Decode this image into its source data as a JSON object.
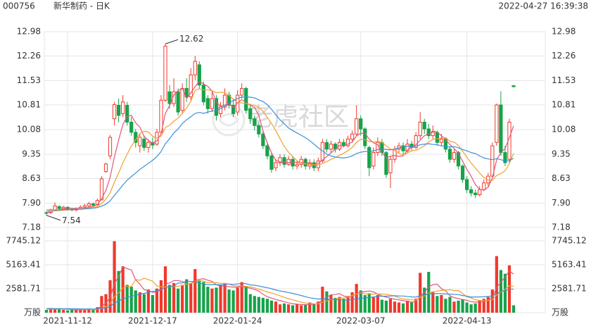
{
  "chart_data": {
    "type": "candlestick",
    "symbol": "000756",
    "title": "新华制药 - 日K",
    "timestamp": "2022-04-27 16:39:38",
    "watermark": "老虎社区",
    "up_color": "#f0392b",
    "down_color": "#16a34a",
    "categories": [
      null,
      null,
      null,
      null,
      null,
      "2021-11-12",
      null,
      null,
      null,
      null,
      null,
      null,
      null,
      null,
      null,
      null,
      null,
      null,
      null,
      null,
      null,
      null,
      null,
      null,
      null,
      "2021-12-17",
      null,
      null,
      null,
      null,
      null,
      null,
      null,
      null,
      null,
      null,
      null,
      null,
      null,
      null,
      null,
      null,
      null,
      null,
      null,
      "2022-01-24",
      null,
      null,
      null,
      null,
      null,
      null,
      null,
      null,
      null,
      null,
      null,
      null,
      null,
      null,
      null,
      null,
      null,
      null,
      null,
      null,
      null,
      null,
      null,
      null,
      null,
      null,
      null,
      null,
      "2022-03-07",
      null,
      null,
      null,
      null,
      null,
      null,
      null,
      null,
      null,
      null,
      null,
      null,
      null,
      null,
      null,
      null,
      null,
      null,
      null,
      null,
      null,
      null,
      null,
      null,
      "2022-04-13",
      null,
      null,
      null,
      null,
      null,
      null,
      null,
      null,
      null,
      null,
      null
    ],
    "open": [
      7.62,
      7.62,
      7.7,
      7.8,
      7.74,
      7.78,
      7.72,
      7.7,
      7.74,
      7.78,
      7.82,
      7.88,
      7.86,
      8.0,
      8.84,
      9.3,
      10.4,
      10.8,
      10.55,
      10.8,
      10.3,
      10.0,
      9.6,
      9.8,
      9.55,
      9.7,
      9.65,
      10.0,
      10.95,
      11.2,
      10.85,
      11.2,
      10.65,
      11.3,
      11.05,
      11.7,
      12.0,
      11.4,
      11.0,
      10.7,
      11.0,
      10.55,
      10.75,
      11.1,
      10.8,
      10.6,
      11.1,
      11.3,
      10.7,
      10.4,
      10.2,
      9.95,
      9.6,
      9.3,
      8.95,
      9.1,
      9.25,
      9.05,
      9.2,
      9.0,
      9.05,
      9.2,
      9.0,
      9.1,
      8.95,
      9.15,
      9.7,
      9.5,
      9.65,
      9.5,
      9.7,
      9.6,
      9.8,
      9.95,
      10.4,
      10.1,
      9.55,
      9.0,
      9.4,
      9.7,
      9.4,
      8.8,
      9.2,
      9.5,
      9.6,
      9.45,
      9.65,
      9.55,
      9.9,
      10.3,
      10.1,
      9.9,
      10.0,
      9.7,
      9.8,
      9.5,
      9.2,
      9.4,
      9.0,
      8.6,
      8.3,
      8.2,
      8.15,
      8.3,
      8.5,
      8.7,
      9.7,
      10.81,
      9.4,
      9.2,
      11.38
    ],
    "high": [
      7.66,
      7.74,
      7.92,
      7.84,
      7.82,
      7.8,
      7.76,
      7.78,
      7.84,
      7.88,
      7.94,
      7.92,
      8.04,
      8.7,
      9.1,
      9.92,
      10.9,
      11.0,
      11.1,
      10.9,
      10.45,
      10.1,
      9.95,
      9.9,
      9.8,
      9.85,
      10.1,
      11.1,
      12.62,
      11.4,
      11.6,
      11.3,
      11.45,
      11.6,
      11.9,
      12.26,
      12.1,
      11.5,
      11.1,
      11.2,
      11.1,
      10.9,
      11.3,
      11.2,
      11.0,
      11.25,
      11.45,
      11.35,
      10.85,
      10.5,
      10.3,
      10.05,
      9.7,
      9.4,
      9.2,
      9.35,
      9.35,
      9.3,
      9.3,
      9.15,
      9.3,
      9.25,
      9.2,
      9.2,
      9.25,
      9.8,
      9.8,
      9.75,
      9.7,
      9.8,
      9.8,
      9.9,
      10.05,
      10.8,
      10.5,
      10.15,
      9.6,
      9.55,
      9.85,
      9.8,
      9.45,
      9.3,
      9.6,
      9.7,
      9.7,
      9.8,
      9.75,
      10.0,
      10.6,
      10.4,
      10.25,
      10.2,
      10.05,
      9.95,
      9.85,
      9.6,
      9.5,
      9.45,
      9.05,
      8.7,
      8.4,
      8.3,
      8.4,
      8.6,
      8.8,
      9.7,
      10.85,
      11.22,
      9.6,
      10.4,
      11.4
    ],
    "low": [
      7.54,
      7.58,
      7.66,
      7.7,
      7.7,
      7.68,
      7.66,
      7.66,
      7.7,
      7.74,
      7.78,
      7.8,
      7.82,
      7.98,
      8.8,
      9.2,
      10.2,
      10.3,
      10.45,
      10.2,
      9.9,
      9.55,
      9.4,
      9.45,
      9.4,
      9.5,
      9.6,
      9.95,
      10.9,
      10.7,
      10.75,
      10.5,
      10.55,
      10.9,
      10.95,
      11.55,
      11.3,
      10.8,
      10.55,
      10.6,
      10.35,
      10.45,
      10.65,
      10.7,
      10.45,
      10.5,
      11.0,
      10.55,
      10.25,
      10.05,
      9.85,
      9.5,
      9.2,
      8.8,
      8.85,
      9.0,
      8.95,
      9.0,
      8.9,
      8.9,
      8.95,
      8.9,
      8.9,
      8.85,
      8.85,
      9.1,
      9.4,
      9.4,
      9.4,
      9.45,
      9.55,
      9.55,
      9.7,
      9.9,
      9.9,
      9.5,
      8.7,
      8.9,
      9.3,
      9.3,
      8.65,
      8.35,
      9.1,
      9.4,
      9.35,
      9.4,
      9.45,
      9.5,
      9.8,
      9.95,
      9.8,
      9.8,
      9.6,
      9.6,
      9.4,
      9.1,
      9.1,
      8.9,
      8.5,
      8.2,
      8.1,
      8.05,
      8.1,
      8.25,
      8.4,
      8.65,
      9.6,
      9.3,
      9.0,
      9.1,
      11.33
    ],
    "close": [
      7.6,
      7.7,
      7.82,
      7.74,
      7.78,
      7.72,
      7.7,
      7.74,
      7.78,
      7.82,
      7.88,
      7.84,
      7.98,
      8.62,
      9.06,
      9.85,
      10.82,
      10.5,
      10.9,
      10.3,
      10.0,
      9.7,
      9.85,
      9.55,
      9.7,
      9.62,
      10.0,
      10.95,
      12.55,
      10.85,
      11.2,
      10.6,
      11.3,
      11.05,
      11.7,
      12.1,
      11.4,
      10.9,
      10.7,
      11.0,
      10.5,
      10.75,
      11.1,
      10.8,
      10.55,
      11.1,
      11.3,
      10.65,
      10.4,
      10.2,
      9.95,
      9.6,
      9.3,
      8.9,
      9.1,
      9.25,
      9.05,
      9.2,
      9.0,
      9.05,
      9.2,
      9.0,
      9.1,
      8.95,
      9.15,
      9.7,
      9.5,
      9.65,
      9.5,
      9.7,
      9.6,
      9.8,
      9.95,
      10.4,
      10.1,
      9.6,
      8.95,
      9.4,
      9.7,
      9.4,
      8.75,
      9.2,
      9.5,
      9.6,
      9.45,
      9.65,
      9.55,
      9.9,
      10.3,
      10.1,
      9.9,
      10.0,
      9.7,
      9.8,
      9.5,
      9.2,
      9.4,
      9.0,
      8.6,
      8.3,
      8.2,
      8.15,
      8.3,
      8.5,
      8.7,
      9.6,
      10.81,
      9.4,
      9.1,
      10.3,
      11.35
    ],
    "ma_series": [
      {
        "color": "#e0577a",
        "values": [
          7.62,
          7.64,
          7.68,
          7.7,
          7.73,
          7.75,
          7.75,
          7.74,
          7.74,
          7.75,
          7.78,
          7.81,
          7.86,
          8.03,
          8.28,
          8.67,
          9.27,
          9.77,
          10.23,
          10.47,
          10.5,
          10.28,
          10.15,
          9.88,
          9.76,
          9.68,
          9.74,
          9.96,
          10.56,
          10.79,
          11.11,
          11.23,
          11.3,
          11.0,
          11.17,
          11.35,
          11.51,
          11.43,
          11.36,
          11.22,
          10.9,
          10.77,
          10.81,
          10.83,
          10.74,
          10.86,
          10.97,
          10.88,
          10.8,
          10.74,
          10.5,
          10.04,
          9.69,
          9.39,
          9.17,
          9.12,
          9.12,
          9.1,
          9.12,
          9.11,
          9.1,
          9.09,
          9.07,
          9.06,
          9.08,
          9.18,
          9.28,
          9.39,
          9.5,
          9.61,
          9.59,
          9.65,
          9.71,
          9.89,
          9.97,
          9.97,
          9.8,
          9.69,
          9.63,
          9.41,
          9.24,
          9.29,
          9.31,
          9.29,
          9.3,
          9.48,
          9.55,
          9.63,
          9.77,
          9.9,
          9.95,
          10.04,
          10.0,
          9.9,
          9.78,
          9.64,
          9.52,
          9.38,
          9.14,
          8.9,
          8.7,
          8.45,
          8.31,
          8.29,
          8.37,
          8.65,
          9.18,
          9.4,
          9.52,
          9.84,
          10.19
        ]
      },
      {
        "color": "#f0a030",
        "values": [
          7.66,
          7.66,
          7.67,
          7.68,
          7.69,
          7.7,
          7.71,
          7.72,
          7.73,
          7.74,
          7.76,
          7.78,
          7.8,
          7.89,
          8.02,
          8.21,
          8.52,
          8.79,
          9.1,
          9.35,
          9.59,
          9.78,
          9.96,
          10.03,
          10.01,
          9.88,
          9.83,
          9.88,
          10.14,
          10.21,
          10.33,
          10.42,
          10.56,
          10.72,
          10.92,
          11.24,
          11.29,
          11.25,
          11.26,
          11.23,
          11.17,
          11.19,
          11.17,
          11.09,
          10.98,
          10.88,
          10.87,
          10.85,
          10.82,
          10.8,
          10.74,
          10.62,
          10.44,
          10.26,
          10.05,
          9.81,
          9.58,
          9.41,
          9.28,
          9.16,
          9.09,
          9.06,
          9.05,
          9.03,
          9.03,
          9.08,
          9.13,
          9.2,
          9.25,
          9.32,
          9.38,
          9.46,
          9.55,
          9.7,
          9.79,
          9.78,
          9.73,
          9.71,
          9.73,
          9.7,
          9.6,
          9.5,
          9.46,
          9.38,
          9.32,
          9.39,
          9.45,
          9.47,
          9.53,
          9.6,
          9.71,
          9.79,
          9.81,
          9.83,
          9.84,
          9.73,
          9.71,
          9.61,
          9.44,
          9.26,
          9.09,
          8.94,
          8.79,
          8.66,
          8.58,
          8.58,
          8.72,
          8.78,
          8.86,
          9.07,
          9.38
        ]
      },
      {
        "color": "#3c8fd8",
        "values": [
          7.7,
          7.7,
          7.7,
          7.7,
          7.71,
          7.71,
          7.71,
          7.72,
          7.72,
          7.73,
          7.74,
          7.75,
          7.77,
          7.81,
          7.87,
          7.97,
          8.13,
          8.28,
          8.44,
          8.58,
          8.69,
          8.79,
          8.9,
          8.99,
          9.08,
          9.17,
          9.28,
          9.43,
          9.66,
          9.81,
          9.98,
          10.1,
          10.26,
          10.37,
          10.46,
          10.56,
          10.59,
          10.56,
          10.6,
          10.63,
          10.65,
          10.7,
          10.77,
          10.87,
          10.94,
          11.0,
          11.04,
          11.05,
          11.04,
          11.02,
          10.96,
          10.91,
          10.82,
          10.68,
          10.52,
          10.37,
          10.25,
          10.13,
          10.05,
          9.98,
          9.91,
          9.84,
          9.75,
          9.65,
          9.54,
          9.45,
          9.35,
          9.3,
          9.27,
          9.25,
          9.24,
          9.26,
          9.3,
          9.37,
          9.41,
          9.43,
          9.43,
          9.45,
          9.49,
          9.51,
          9.49,
          9.48,
          9.5,
          9.54,
          9.56,
          9.59,
          9.59,
          9.59,
          9.63,
          9.65,
          9.66,
          9.64,
          9.63,
          9.6,
          9.58,
          9.56,
          9.58,
          9.54,
          9.49,
          9.45,
          9.4,
          9.37,
          9.3,
          9.24,
          9.21,
          9.19,
          9.22,
          9.19,
          9.15,
          9.16,
          9.23
        ]
      }
    ],
    "ylim": [
      7.18,
      12.98
    ],
    "yticks": [
      12.98,
      12.26,
      11.53,
      10.81,
      10.08,
      9.35,
      8.63,
      {
        "value": 7.9,
        "label": "7.90"
      },
      7.18
    ],
    "volume": [
      300,
      500,
      450,
      350,
      300,
      250,
      300,
      280,
      350,
      400,
      450,
      300,
      600,
      1800,
      2000,
      3500,
      7700,
      4500,
      5000,
      3000,
      2800,
      2400,
      2200,
      2000,
      2500,
      1900,
      2600,
      3500,
      5000,
      3000,
      3200,
      2600,
      3000,
      3600,
      3200,
      4700,
      3500,
      3300,
      2800,
      2600,
      2700,
      3000,
      3200,
      2500,
      2400,
      2700,
      3300,
      2800,
      2000,
      1800,
      1700,
      1600,
      1500,
      1300,
      1200,
      900,
      1000,
      900,
      800,
      900,
      800,
      850,
      1100,
      950,
      1200,
      2800,
      2300,
      1900,
      1600,
      1700,
      1500,
      1800,
      2200,
      3100,
      2400,
      1900,
      2100,
      1700,
      1900,
      1400,
      1300,
      1500,
      1200,
      1100,
      1000,
      1300,
      1100,
      1500,
      4300,
      2700,
      4400,
      2200,
      1800,
      1900,
      1500,
      1700,
      1200,
      1300,
      1400,
      1100,
      900,
      1000,
      1300,
      1500,
      1700,
      2500,
      6100,
      4600,
      4200,
      5100,
      800
    ],
    "volume_ma": [
      {
        "color": "#e0577a",
        "values": [
          380,
          390,
          400,
          400,
          380,
          370,
          330,
          300,
          300,
          320,
          360,
          360,
          420,
          710,
          1030,
          1640,
          3130,
          3890,
          4950,
          4750,
          4610,
          3540,
          3080,
          2480,
          2380,
          2200,
          2240,
          2500,
          3100,
          3200,
          3460,
          3460,
          3360,
          3080,
          3120,
          3460,
          3600,
          3660,
          3500,
          3380,
          3000,
          2880,
          2860,
          2800,
          2760,
          2760,
          2820,
          2740,
          2640,
          2520,
          2320,
          1980,
          1720,
          1580,
          1420,
          1300,
          1180,
          1060,
          960,
          920,
          880,
          870,
          890,
          920,
          980,
          1380,
          1640,
          1950,
          1960,
          2060,
          1800,
          1700,
          1760,
          2060,
          2200,
          2280,
          2340,
          2240,
          2000,
          1800,
          1680,
          1560,
          1460,
          1380,
          1300,
          1220,
          1140,
          1200,
          1840,
          2180,
          2800,
          3020,
          3080,
          2600,
          2360,
          1820,
          1620,
          1520,
          1420,
          1340,
          1180,
          1140,
          1140,
          1160,
          1400,
          1600,
          2720,
          3280,
          3840,
          4500,
          4160
        ]
      },
      {
        "color": "#f0a030",
        "values": [
          400,
          400,
          400,
          395,
          390,
          385,
          370,
          350,
          340,
          340,
          345,
          340,
          360,
          500,
          660,
          990,
          1730,
          2140,
          2660,
          2840,
          2810,
          3590,
          3480,
          3720,
          3560,
          3400,
          2890,
          2790,
          2790,
          2790,
          2830,
          2850,
          2930,
          3090,
          3160,
          3330,
          3430,
          3410,
          3220,
          3250,
          3230,
          3170,
          3160,
          3080,
          2930,
          2880,
          2900,
          2850,
          2780,
          2680,
          2540,
          2400,
          2230,
          2120,
          1980,
          1830,
          1660,
          1500,
          1390,
          1260,
          1150,
          1040,
          990,
          960,
          950,
          1140,
          1260,
          1410,
          1450,
          1530,
          1590,
          1670,
          1860,
          2010,
          2130,
          2040,
          2020,
          2000,
          2030,
          2000,
          1980,
          1900,
          1800,
          1590,
          1470,
          1450,
          1390,
          1360,
          1660,
          1790,
          2120,
          2270,
          2340,
          2400,
          2430,
          2480,
          2380,
          2390,
          2060,
          1700,
          1590,
          1390,
          1330,
          1290,
          1310,
          1390,
          1900,
          2230,
          2520,
          2900,
          2840
        ]
      },
      {
        "color": "#3c8fd8",
        "values": [
          450,
          445,
          440,
          435,
          430,
          425,
          420,
          415,
          410,
          405,
          400,
          395,
          400,
          460,
          530,
          680,
          1050,
          1250,
          1500,
          1640,
          1770,
          1880,
          1980,
          2080,
          2190,
          2280,
          2380,
          2510,
          2710,
          2830,
          2850,
          3200,
          3210,
          3400,
          3360,
          3370,
          3160,
          3100,
          3010,
          3020,
          3030,
          3000,
          3030,
          3090,
          3050,
          3110,
          3160,
          3130,
          3000,
          2960,
          2880,
          2780,
          2690,
          2590,
          2450,
          2350,
          2270,
          2170,
          2080,
          1970,
          1850,
          1720,
          1610,
          1540,
          1460,
          1490,
          1460,
          1450,
          1420,
          1390,
          1370,
          1360,
          1420,
          1480,
          1540,
          1590,
          1640,
          1700,
          1740,
          1770,
          1790,
          1790,
          1830,
          1800,
          1800,
          1740,
          1700,
          1680,
          1840,
          1900,
          2050,
          2040,
          2070,
          2040,
          2010,
          2000,
          1970,
          1950,
          1850,
          1780,
          1690,
          1690,
          1700,
          1720,
          1760,
          1810,
          2050,
          2290,
          2350,
          2550,
          2540
        ]
      }
    ],
    "vol_ylim": [
      0,
      7745.12
    ],
    "vol_yticks": [
      7745.12,
      5163.41,
      2581.71,
      {
        "value": 0,
        "label": "万股"
      }
    ],
    "grid": true
  }
}
